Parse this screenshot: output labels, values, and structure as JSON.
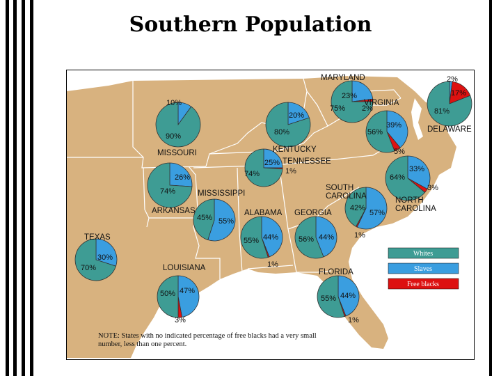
{
  "title": "Southern Population",
  "colors": {
    "whites": "#3e9c94",
    "slaves": "#3a9ee0",
    "free_blacks": "#dd1111",
    "land": "#d8b27f",
    "water": "#ffffff"
  },
  "legend": [
    {
      "label": "Whites",
      "color": "#3e9c94"
    },
    {
      "label": "Slaves",
      "color": "#3a9ee0"
    },
    {
      "label": "Free blacks",
      "color": "#dd1111"
    }
  ],
  "note": {
    "line1": "NOTE: States with no indicated percentage of free blacks had a very small",
    "line2": "number, less than one percent."
  },
  "states": [
    {
      "name": "MARYLAND",
      "whites": 75,
      "slaves": 23,
      "free_blacks": 2,
      "labels": {
        "whites": "75%",
        "slaves": "23%",
        "free_blacks": "2%"
      }
    },
    {
      "name": "DELAWARE",
      "whites": 81,
      "slaves": 2,
      "free_blacks": 17,
      "labels": {
        "whites": "81%",
        "slaves": "2%",
        "free_blacks": "17%"
      }
    },
    {
      "name": "VIRGINIA",
      "whites": 56,
      "slaves": 39,
      "free_blacks": 5,
      "labels": {
        "whites": "56%",
        "slaves": "39%",
        "free_blacks": "5%"
      }
    },
    {
      "name": "MISSOURI",
      "whites": 90,
      "slaves": 10,
      "free_blacks": 0,
      "labels": {
        "whites": "90%",
        "slaves": "10%"
      }
    },
    {
      "name": "KENTUCKY",
      "whites": 80,
      "slaves": 20,
      "free_blacks": 0,
      "labels": {
        "whites": "80%",
        "slaves": "20%"
      }
    },
    {
      "name": "TENNESSEE",
      "whites": 74,
      "slaves": 25,
      "free_blacks": 1,
      "labels": {
        "whites": "74%",
        "slaves": "25%",
        "free_blacks": "1%"
      }
    },
    {
      "name": "NORTH CAROLINA",
      "whites": 64,
      "slaves": 33,
      "free_blacks": 3,
      "labels": {
        "whites": "64%",
        "slaves": "33%",
        "free_blacks": "3%"
      }
    },
    {
      "name": "ARKANSAS",
      "whites": 74,
      "slaves": 26,
      "free_blacks": 0,
      "labels": {
        "whites": "74%",
        "slaves": "26%"
      }
    },
    {
      "name": "SOUTH CAROLINA",
      "whites": 42,
      "slaves": 57,
      "free_blacks": 1,
      "labels": {
        "whites": "42%",
        "slaves": "57%",
        "free_blacks": "1%"
      }
    },
    {
      "name": "MISSISSIPPI",
      "whites": 45,
      "slaves": 55,
      "free_blacks": 0,
      "labels": {
        "whites": "45%",
        "slaves": "55%"
      }
    },
    {
      "name": "ALABAMA",
      "whites": 55,
      "slaves": 44,
      "free_blacks": 1,
      "labels": {
        "whites": "55%",
        "slaves": "44%",
        "free_blacks": "1%"
      }
    },
    {
      "name": "GEORGIA",
      "whites": 56,
      "slaves": 44,
      "free_blacks": 0,
      "labels": {
        "whites": "56%",
        "slaves": "44%"
      }
    },
    {
      "name": "TEXAS",
      "whites": 70,
      "slaves": 30,
      "free_blacks": 0,
      "labels": {
        "whites": "70%",
        "slaves": "30%"
      }
    },
    {
      "name": "LOUISIANA",
      "whites": 50,
      "slaves": 47,
      "free_blacks": 3,
      "labels": {
        "whites": "50%",
        "slaves": "47%",
        "free_blacks": "3%"
      }
    },
    {
      "name": "FLORIDA",
      "whites": 55,
      "slaves": 44,
      "free_blacks": 1,
      "labels": {
        "whites": "55%",
        "slaves": "44%",
        "free_blacks": "1%"
      }
    }
  ]
}
